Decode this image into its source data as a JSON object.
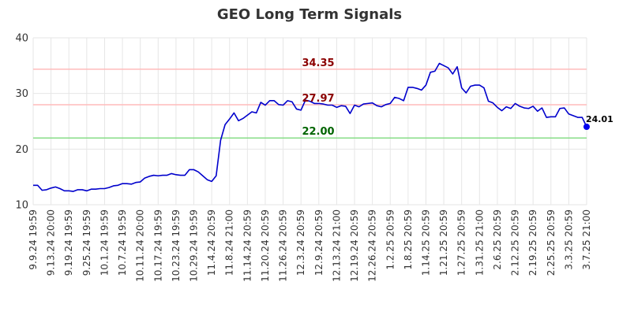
{
  "chart_data": {
    "type": "line",
    "title": "GEO Long Term Signals",
    "xlabel": "",
    "ylabel": "",
    "ylim": [
      10,
      40
    ],
    "yticks": [
      10,
      20,
      30,
      40
    ],
    "grid": true,
    "x_tick_labels": [
      "9.9.24 19:59",
      "9.13.24 20:00",
      "9.19.24 19:59",
      "9.25.24 19:59",
      "10.1.24 19:59",
      "10.7.24 19:59",
      "10.11.24 20:00",
      "10.17.24 19:59",
      "10.23.24 19:59",
      "10.29.24 19:59",
      "11.4.24 20:59",
      "11.8.24 21:00",
      "11.14.24 20:59",
      "11.20.24 20:59",
      "11.26.24 20:59",
      "12.3.24 20:59",
      "12.9.24 20:59",
      "12.13.24 21:00",
      "12.19.24 20:59",
      "12.26.24 20:59",
      "1.2.25 20:59",
      "1.8.25 20:59",
      "1.14.25 20:59",
      "1.21.25 20:59",
      "1.27.25 20:59",
      "1.31.25 21:00",
      "2.6.25 20:59",
      "2.12.25 20:59",
      "2.19.25 20:59",
      "2.25.25 20:59",
      "3.3.25 20:59",
      "3.7.25 21:00"
    ],
    "series": [
      {
        "color": "#0000cc",
        "values": [
          13.5,
          13.5,
          12.6,
          12.7,
          13.0,
          13.2,
          12.9,
          12.5,
          12.5,
          12.4,
          12.7,
          12.7,
          12.5,
          12.8,
          12.8,
          12.9,
          12.9,
          13.1,
          13.4,
          13.5,
          13.8,
          13.8,
          13.7,
          14.0,
          14.1,
          14.8,
          15.1,
          15.3,
          15.2,
          15.3,
          15.3,
          15.6,
          15.4,
          15.3,
          15.3,
          16.3,
          16.3,
          15.9,
          15.2,
          14.5,
          14.2,
          15.2,
          21.6,
          24.4,
          25.4,
          26.5,
          25.1,
          25.5,
          26.1,
          26.7,
          26.5,
          28.4,
          27.9,
          28.7,
          28.7,
          28.0,
          27.9,
          28.7,
          28.5,
          27.2,
          27.0,
          28.8,
          28.6,
          28.2,
          28.2,
          28.1,
          27.9,
          27.9,
          27.5,
          27.8,
          27.7,
          26.4,
          27.9,
          27.6,
          28.1,
          28.2,
          28.3,
          27.8,
          27.6,
          28.0,
          28.2,
          29.3,
          29.1,
          28.7,
          31.1,
          31.1,
          30.9,
          30.6,
          31.5,
          33.8,
          34.0,
          35.4,
          35.0,
          34.6,
          33.5,
          34.8,
          31.0,
          30.1,
          31.3,
          31.5,
          31.5,
          31.0,
          28.6,
          28.3,
          27.5,
          26.9,
          27.6,
          27.3,
          28.2,
          27.7,
          27.4,
          27.3,
          27.7,
          26.8,
          27.4,
          25.7,
          25.8,
          25.8,
          27.3,
          27.4,
          26.3,
          26.0,
          25.7,
          25.7,
          24.01
        ]
      }
    ],
    "horizontal_lines": [
      {
        "value": 34.35,
        "label": "34.35",
        "line_color": "#ffbbbb",
        "label_color": "#8b0000"
      },
      {
        "value": 27.97,
        "label": "27.97",
        "line_color": "#ffbbbb",
        "label_color": "#8b0000"
      },
      {
        "value": 22.0,
        "label": "22.00",
        "line_color": "#88dd88",
        "label_color": "#006400"
      }
    ],
    "last_value_label": "24.01",
    "last_point_color": "#0000ee"
  }
}
